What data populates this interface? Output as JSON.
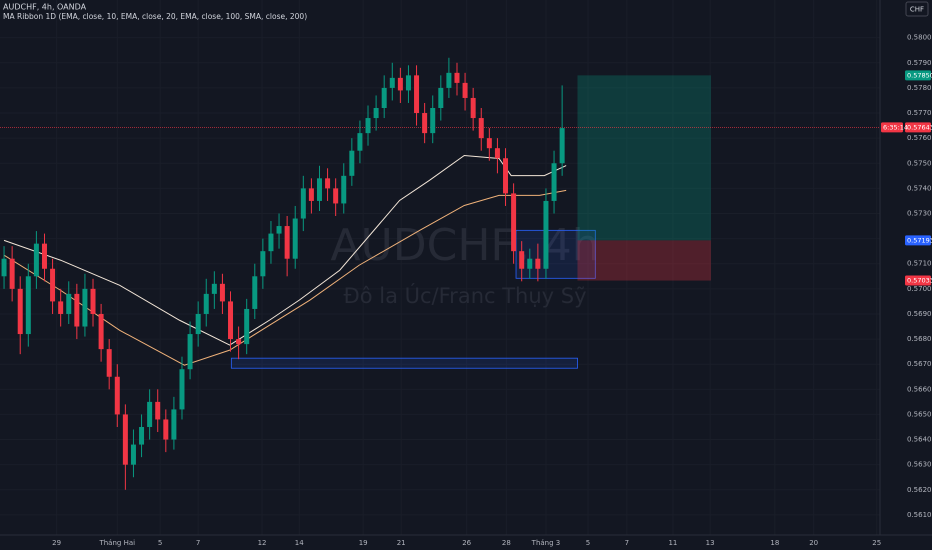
{
  "chart_data": {
    "type": "candlestick",
    "title": "AUDCHF, 4h, OANDA",
    "indicator": "MA Ribbon  1D (EMA, close, 10, EMA, close, 20, EMA, close, 100, SMA, close, 200)",
    "watermark": "AUDCHF, 4h",
    "watermark_subtitle": "Đô la Úc/Franc Thụy Sỹ",
    "currency": "CHF",
    "up_color": "#089981",
    "down_color": "#f23645",
    "open": [
      0.5705,
      0.5712,
      0.57,
      0.5682,
      0.5705,
      0.5718,
      0.5708,
      0.5695,
      0.569,
      0.5698,
      0.5685,
      0.57,
      0.569,
      0.5676,
      0.5665,
      0.565,
      0.563,
      0.5638,
      0.5645,
      0.5655,
      0.5648,
      0.564,
      0.5652,
      0.5668,
      0.5682,
      0.569,
      0.5698,
      0.5702,
      0.5695,
      0.568,
      0.5678,
      0.5692,
      0.5705,
      0.5715,
      0.5722,
      0.5725,
      0.5712,
      0.5728,
      0.574,
      0.5735,
      0.5744,
      0.574,
      0.5734,
      0.5745,
      0.5755,
      0.5762,
      0.5768,
      0.5772,
      0.578,
      0.5784,
      0.5779,
      0.5785,
      0.577,
      0.5762,
      0.5772,
      0.578,
      0.5786,
      0.5782,
      0.5776,
      0.5768,
      0.576,
      0.5756,
      0.5752,
      0.5738,
      0.5715,
      0.5708,
      0.5712,
      0.5708,
      0.5735,
      0.575
    ],
    "high": [
      0.5717,
      0.5717,
      0.5705,
      0.571,
      0.5723,
      0.5722,
      0.5712,
      0.57,
      0.5703,
      0.5702,
      0.5706,
      0.5704,
      0.5694,
      0.568,
      0.567,
      0.5654,
      0.5644,
      0.565,
      0.566,
      0.566,
      0.5652,
      0.5657,
      0.5673,
      0.5687,
      0.5695,
      0.5704,
      0.5707,
      0.5706,
      0.5699,
      0.5685,
      0.5696,
      0.571,
      0.572,
      0.5727,
      0.573,
      0.5729,
      0.5733,
      0.5745,
      0.5744,
      0.5749,
      0.5748,
      0.5744,
      0.575,
      0.576,
      0.5767,
      0.5773,
      0.5777,
      0.5785,
      0.579,
      0.5788,
      0.5789,
      0.5789,
      0.5774,
      0.5777,
      0.5785,
      0.5792,
      0.579,
      0.5786,
      0.578,
      0.5772,
      0.5764,
      0.576,
      0.5756,
      0.5742,
      0.5719,
      0.5716,
      0.5718,
      0.574,
      0.5755,
      0.5781
    ],
    "low": [
      0.57,
      0.5695,
      0.5674,
      0.5677,
      0.57,
      0.5703,
      0.569,
      0.5685,
      0.5686,
      0.568,
      0.5681,
      0.5685,
      0.5671,
      0.566,
      0.5645,
      0.562,
      0.5625,
      0.5633,
      0.564,
      0.5643,
      0.5635,
      0.5636,
      0.5648,
      0.5664,
      0.5677,
      0.5685,
      0.5692,
      0.569,
      0.5675,
      0.5672,
      0.5674,
      0.5688,
      0.57,
      0.571,
      0.5716,
      0.5705,
      0.5708,
      0.5723,
      0.573,
      0.5731,
      0.5735,
      0.5729,
      0.573,
      0.5741,
      0.575,
      0.5757,
      0.5763,
      0.5768,
      0.5775,
      0.5774,
      0.5774,
      0.5765,
      0.5758,
      0.5758,
      0.5767,
      0.5776,
      0.5777,
      0.5771,
      0.5763,
      0.5755,
      0.5751,
      0.5746,
      0.5733,
      0.571,
      0.5703,
      0.5704,
      0.5703,
      0.5704,
      0.573,
      0.5745
    ],
    "close": [
      0.5712,
      0.57,
      0.5682,
      0.5705,
      0.5718,
      0.5708,
      0.5695,
      0.569,
      0.5698,
      0.5685,
      0.57,
      0.569,
      0.5676,
      0.5665,
      0.565,
      0.563,
      0.5638,
      0.5645,
      0.5655,
      0.5648,
      0.564,
      0.5652,
      0.5668,
      0.5682,
      0.569,
      0.5698,
      0.5702,
      0.5695,
      0.568,
      0.5678,
      0.5692,
      0.5705,
      0.5715,
      0.5722,
      0.5725,
      0.5712,
      0.5728,
      0.574,
      0.5735,
      0.5744,
      0.574,
      0.5734,
      0.5745,
      0.5755,
      0.5762,
      0.5768,
      0.5772,
      0.578,
      0.5784,
      0.5779,
      0.5785,
      0.577,
      0.5762,
      0.5772,
      0.578,
      0.5786,
      0.5782,
      0.5776,
      0.5768,
      0.576,
      0.5756,
      0.5752,
      0.5738,
      0.5715,
      0.5708,
      0.5712,
      0.5708,
      0.5735,
      0.575,
      0.5764
    ],
    "overlays": [
      {
        "color": "#f3e6d8",
        "x": [
          0,
          7,
          14.3,
          21.7,
          27.9,
          32.8,
          36.5,
          41.5,
          48.9,
          52.6,
          56.9,
          61.2,
          62.7,
          66.8,
          69.5
        ],
        "values": [
          0.57193,
          0.57114,
          0.57014,
          0.56875,
          0.56776,
          0.56875,
          0.56955,
          0.57074,
          0.57352,
          0.57432,
          0.57531,
          0.57519,
          0.57451,
          0.57451,
          0.57491
        ]
      },
      {
        "color": "#f0b27a",
        "x": [
          0,
          7,
          14.3,
          22.3,
          27.9,
          32.8,
          37.8,
          43.9,
          51.4,
          56.9,
          61.2,
          66.2,
          69.5
        ],
        "values": [
          0.57134,
          0.56994,
          0.56835,
          0.56696,
          0.56756,
          0.56855,
          0.56955,
          0.57094,
          0.57233,
          0.57332,
          0.57372,
          0.57372,
          0.57392
        ]
      }
    ],
    "zones": [
      {
        "x": [
          28.1,
          70.9
        ],
        "y": [
          0.56684,
          0.56724
        ]
      },
      {
        "x": [
          63.3,
          73.1
        ],
        "y": [
          0.57042,
          0.57233
        ]
      }
    ],
    "position": {
      "x": [
        70.9,
        87.4
      ],
      "target": {
        "value": 0.5785,
        "label": "0.57850"
      },
      "entry": 0.57193,
      "stop": 0.57033
    },
    "last_price": 0.57643,
    "countdown": "6:35:14",
    "xlim": [
      -0.5,
      108.3
    ],
    "ylim": [
      0.5602,
      0.5815
    ],
    "xticks": [
      {
        "value": 6.5,
        "label": "29"
      },
      {
        "value": 14,
        "label": "Tháng Hai"
      },
      {
        "value": 19.3,
        "label": "5"
      },
      {
        "value": 24,
        "label": "7"
      },
      {
        "value": 31.9,
        "label": "12"
      },
      {
        "value": 36.5,
        "label": "14"
      },
      {
        "value": 44.4,
        "label": "19"
      },
      {
        "value": 49.1,
        "label": "21"
      },
      {
        "value": 57.2,
        "label": "26"
      },
      {
        "value": 62.1,
        "label": "28"
      },
      {
        "value": 67,
        "label": "Tháng 3"
      },
      {
        "value": 72.2,
        "label": "5"
      },
      {
        "value": 77,
        "label": "7"
      },
      {
        "value": 82.7,
        "label": "11"
      },
      {
        "value": 87.3,
        "label": "13"
      },
      {
        "value": 95.3,
        "label": "18"
      },
      {
        "value": 100.1,
        "label": "20"
      },
      {
        "value": 107.9,
        "label": "25"
      }
    ],
    "yticks": [
      {
        "value": 0.561,
        "label": "0.56100"
      },
      {
        "value": 0.562,
        "label": "0.56200"
      },
      {
        "value": 0.563,
        "label": "0.56300"
      },
      {
        "value": 0.564,
        "label": "0.56400"
      },
      {
        "value": 0.565,
        "label": "0.56500"
      },
      {
        "value": 0.566,
        "label": "0.56600"
      },
      {
        "value": 0.567,
        "label": "0.56700"
      },
      {
        "value": 0.568,
        "label": "0.56800"
      },
      {
        "value": 0.569,
        "label": "0.56900"
      },
      {
        "value": 0.57,
        "label": "0.57000"
      },
      {
        "value": 0.571,
        "label": "0.57100"
      },
      {
        "value": 0.572,
        "label": "0.57200"
      },
      {
        "value": 0.573,
        "label": "0.57300"
      },
      {
        "value": 0.574,
        "label": "0.57400"
      },
      {
        "value": 0.575,
        "label": "0.57500"
      },
      {
        "value": 0.576,
        "label": "0.57600"
      },
      {
        "value": 0.577,
        "label": "0.57700"
      },
      {
        "value": 0.578,
        "label": "0.57800"
      },
      {
        "value": 0.579,
        "label": "0.57900"
      },
      {
        "value": 0.58,
        "label": "0.58000"
      }
    ],
    "grid": true
  }
}
